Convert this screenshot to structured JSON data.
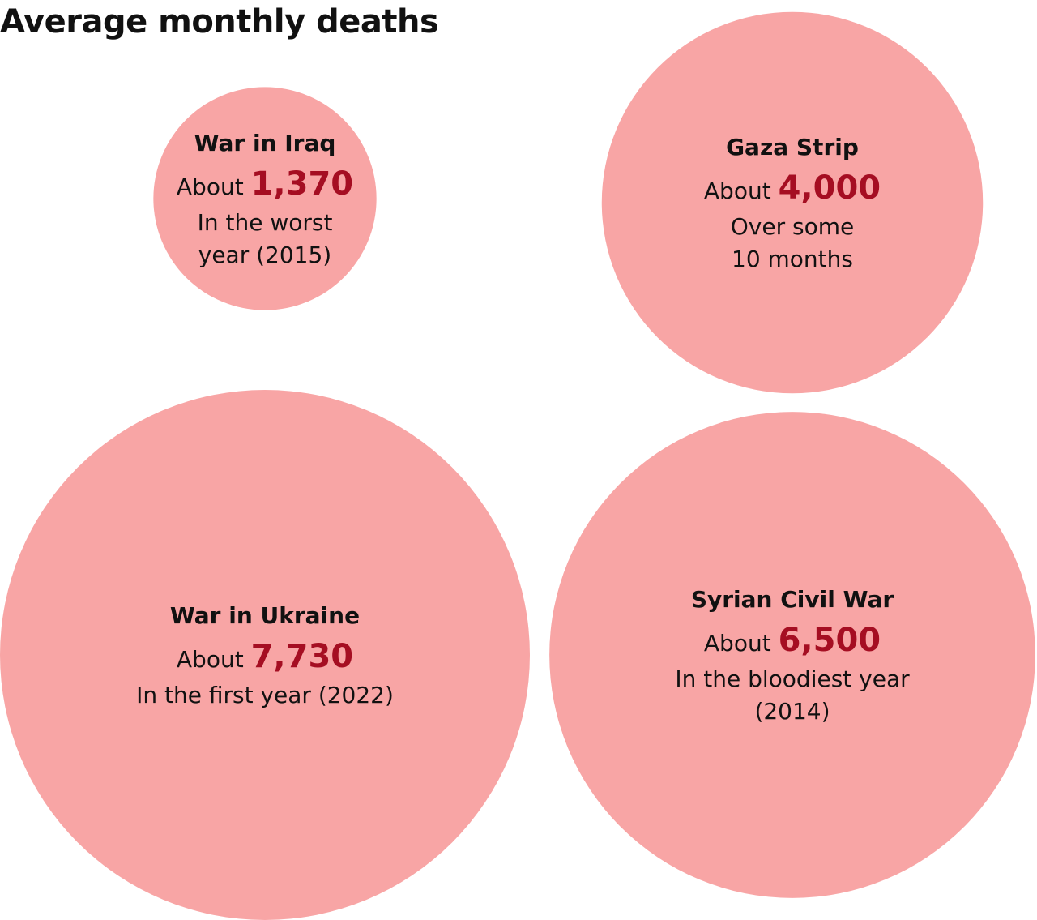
{
  "title": "Average monthly deaths",
  "colors": {
    "bubble": "#f8a5a5",
    "value": "#a50e22",
    "text": "#111111"
  },
  "chart_data": {
    "type": "bubble",
    "title": "Average monthly deaths",
    "items": [
      {
        "name": "War in Iraq",
        "prefix": "About",
        "value_label": "1,370",
        "value": 1370,
        "note": [
          "In the worst",
          "year (2015)"
        ]
      },
      {
        "name": "Gaza Strip",
        "prefix": "About",
        "value_label": "4,000",
        "value": 4000,
        "note": [
          "Over some",
          "10 months"
        ]
      },
      {
        "name": "War in Ukraine",
        "prefix": "About",
        "value_label": "7,730",
        "value": 7730,
        "note": [
          "In the first year (2022)"
        ]
      },
      {
        "name": "Syrian Civil War",
        "prefix": "About",
        "value_label": "6,500",
        "value": 6500,
        "note": [
          "In the bloodiest year",
          "(2014)"
        ]
      }
    ]
  }
}
